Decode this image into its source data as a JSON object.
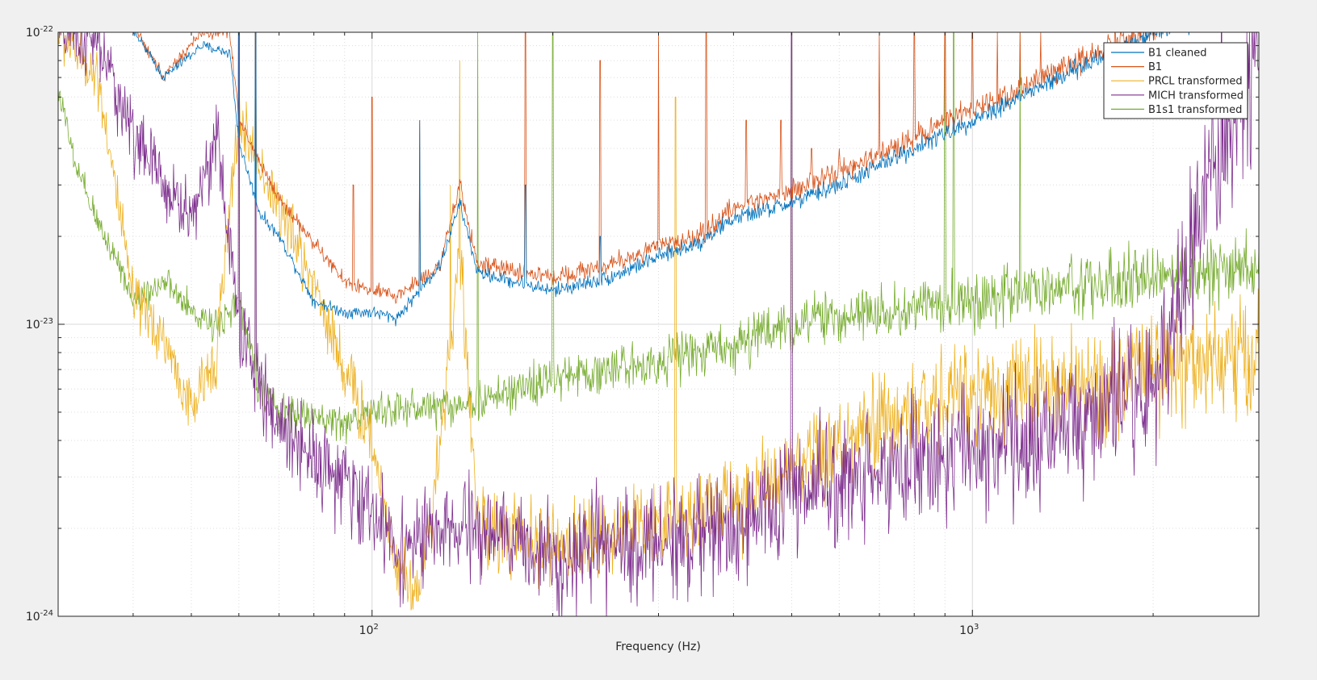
{
  "window": {
    "background": "#f0f0f0"
  },
  "chart_data": {
    "type": "line",
    "title": "",
    "xlabel": "Frequency (Hz)",
    "ylabel": "",
    "xscale": "log",
    "yscale": "log",
    "xlim": [
      30,
      3000
    ],
    "ylim": [
      1e-24,
      1e-22
    ],
    "grid": true,
    "minor_grid": true,
    "legend_position": "top-right",
    "x_ticks": [
      {
        "value": 100,
        "base": "10",
        "exp": "2"
      },
      {
        "value": 1000,
        "base": "10",
        "exp": "3"
      }
    ],
    "y_ticks": [
      {
        "value": 1e-24,
        "base": "10",
        "exp": "-24"
      },
      {
        "value": 1e-23,
        "base": "10",
        "exp": "-23"
      },
      {
        "value": 1e-22,
        "base": "10",
        "exp": "-22"
      }
    ],
    "series": [
      {
        "name": "B1 cleaned",
        "color": "#0072bd",
        "noise": 0.04,
        "anchors": [
          [
            30,
            1.35e-22
          ],
          [
            38,
            1.2e-22
          ],
          [
            45,
            7e-23
          ],
          [
            52,
            9e-23
          ],
          [
            58,
            8.5e-23
          ],
          [
            60,
            4.2e-23
          ],
          [
            65,
            2.4e-23
          ],
          [
            70,
            2e-23
          ],
          [
            80,
            1.2e-23
          ],
          [
            90,
            1.1e-23
          ],
          [
            100,
            1.1e-23
          ],
          [
            110,
            1.05e-23
          ],
          [
            130,
            1.6e-23
          ],
          [
            140,
            2.6e-23
          ],
          [
            150,
            1.5e-23
          ],
          [
            200,
            1.3e-23
          ],
          [
            250,
            1.45e-23
          ],
          [
            300,
            1.7e-23
          ],
          [
            350,
            1.9e-23
          ],
          [
            400,
            2.3e-23
          ],
          [
            500,
            2.6e-23
          ],
          [
            600,
            3e-23
          ],
          [
            700,
            3.5e-23
          ],
          [
            800,
            4e-23
          ],
          [
            1000,
            5e-23
          ],
          [
            1200,
            6e-23
          ],
          [
            1500,
            7.5e-23
          ],
          [
            2000,
            1e-22
          ],
          [
            2500,
            1.15e-22
          ]
        ],
        "peaks": [
          [
            60,
            6e-22
          ],
          [
            64,
            3e-22
          ],
          [
            120,
            5e-23
          ],
          [
            180,
            3e-23
          ],
          [
            240,
            2e-23
          ]
        ]
      },
      {
        "name": "B1",
        "color": "#d95319",
        "noise": 0.05,
        "anchors": [
          [
            30,
            1.35e-22
          ],
          [
            38,
            1.25e-22
          ],
          [
            45,
            7e-23
          ],
          [
            52,
            1e-22
          ],
          [
            58,
            1e-22
          ],
          [
            60,
            5e-23
          ],
          [
            65,
            3.6e-23
          ],
          [
            70,
            2.7e-23
          ],
          [
            80,
            1.9e-23
          ],
          [
            90,
            1.4e-23
          ],
          [
            100,
            1.3e-23
          ],
          [
            110,
            1.25e-23
          ],
          [
            130,
            1.6e-23
          ],
          [
            140,
            3e-23
          ],
          [
            150,
            1.6e-23
          ],
          [
            200,
            1.45e-23
          ],
          [
            250,
            1.6e-23
          ],
          [
            300,
            1.85e-23
          ],
          [
            350,
            2e-23
          ],
          [
            400,
            2.5e-23
          ],
          [
            500,
            2.9e-23
          ],
          [
            600,
            3.3e-23
          ],
          [
            700,
            3.8e-23
          ],
          [
            800,
            4.4e-23
          ],
          [
            1000,
            5.4e-23
          ],
          [
            1200,
            6.4e-23
          ],
          [
            1500,
            8e-23
          ],
          [
            2000,
            1.05e-22
          ],
          [
            2500,
            1.2e-22
          ]
        ],
        "peaks": [
          [
            60,
            6e-22
          ],
          [
            64,
            3e-22
          ],
          [
            93,
            3e-23
          ],
          [
            100,
            6e-23
          ],
          [
            120,
            5e-23
          ],
          [
            180,
            1e-22
          ],
          [
            240,
            8e-23
          ],
          [
            300,
            1e-22
          ],
          [
            360,
            1e-22
          ],
          [
            420,
            5e-23
          ],
          [
            480,
            5e-23
          ],
          [
            540,
            4e-23
          ],
          [
            600,
            4e-23
          ],
          [
            700,
            1e-22
          ],
          [
            800,
            1e-22
          ],
          [
            900,
            1e-22
          ],
          [
            1000,
            1e-22
          ],
          [
            1100,
            1e-22
          ],
          [
            1200,
            1e-22
          ],
          [
            1300,
            1e-22
          ]
        ]
      },
      {
        "name": "PRCL transformed",
        "color": "#edb120",
        "noise": 0.22,
        "anchors": [
          [
            30,
            1e-22
          ],
          [
            35,
            7e-23
          ],
          [
            40,
            1.2e-23
          ],
          [
            45,
            9e-24
          ],
          [
            50,
            5e-24
          ],
          [
            55,
            8e-24
          ],
          [
            60,
            5e-23
          ],
          [
            70,
            2.5e-23
          ],
          [
            80,
            1.4e-23
          ],
          [
            90,
            7e-24
          ],
          [
            100,
            4e-24
          ],
          [
            110,
            1.5e-24
          ],
          [
            120,
            1.2e-24
          ],
          [
            130,
            4e-24
          ],
          [
            140,
            1.8e-23
          ],
          [
            150,
            2e-24
          ],
          [
            200,
            1.7e-24
          ],
          [
            300,
            2.1e-24
          ],
          [
            400,
            2.5e-24
          ],
          [
            500,
            3e-24
          ],
          [
            700,
            4.5e-24
          ],
          [
            1000,
            6e-24
          ],
          [
            1500,
            6e-24
          ],
          [
            2000,
            7e-24
          ],
          [
            3000,
            8e-24
          ]
        ],
        "peaks": [
          [
            60,
            6e-22
          ],
          [
            64,
            3e-22
          ],
          [
            135,
            3e-23
          ],
          [
            140,
            8e-23
          ],
          [
            320,
            6e-23
          ],
          [
            1270,
            1e-23
          ]
        ]
      },
      {
        "name": "MICH transformed",
        "color": "#7e2f8e",
        "noise": 0.28,
        "anchors": [
          [
            30,
            1e-22
          ],
          [
            35,
            9e-23
          ],
          [
            40,
            4.5e-23
          ],
          [
            45,
            3e-23
          ],
          [
            50,
            2.3e-23
          ],
          [
            55,
            4.5e-23
          ],
          [
            60,
            1e-23
          ],
          [
            65,
            6e-24
          ],
          [
            70,
            4.5e-24
          ],
          [
            80,
            3.6e-24
          ],
          [
            90,
            2.8e-24
          ],
          [
            100,
            2.3e-24
          ],
          [
            110,
            1.7e-24
          ],
          [
            130,
            1.9e-24
          ],
          [
            150,
            2e-24
          ],
          [
            200,
            1.6e-24
          ],
          [
            300,
            1.8e-24
          ],
          [
            400,
            2e-24
          ],
          [
            500,
            2.6e-24
          ],
          [
            700,
            3.2e-24
          ],
          [
            1000,
            3.7e-24
          ],
          [
            1500,
            4.5e-24
          ],
          [
            2000,
            6e-24
          ],
          [
            2500,
            3e-23
          ],
          [
            3000,
            8e-23
          ]
        ],
        "peaks": [
          [
            60,
            5e-22
          ],
          [
            64,
            3e-22
          ],
          [
            500,
            1e-22
          ],
          [
            2600,
            2e-22
          ]
        ]
      },
      {
        "name": "B1s1 transformed",
        "color": "#77ac30",
        "noise": 0.12,
        "anchors": [
          [
            30,
            6.5e-23
          ],
          [
            32,
            3.5e-23
          ],
          [
            35,
            2.2e-23
          ],
          [
            38,
            1.6e-23
          ],
          [
            40,
            1.2e-23
          ],
          [
            45,
            1.4e-23
          ],
          [
            50,
            1.1e-23
          ],
          [
            55,
            1e-23
          ],
          [
            60,
            1.2e-23
          ],
          [
            65,
            6e-24
          ],
          [
            70,
            5e-24
          ],
          [
            80,
            4.8e-24
          ],
          [
            90,
            4.6e-24
          ],
          [
            100,
            5e-24
          ],
          [
            120,
            5.2e-24
          ],
          [
            150,
            5.4e-24
          ],
          [
            200,
            6.5e-24
          ],
          [
            250,
            7e-24
          ],
          [
            300,
            7.5e-24
          ],
          [
            400,
            8.5e-24
          ],
          [
            500,
            1e-23
          ],
          [
            700,
            1.1e-23
          ],
          [
            1000,
            1.2e-23
          ],
          [
            1500,
            1.35e-23
          ],
          [
            2000,
            1.45e-23
          ],
          [
            3000,
            1.6e-23
          ]
        ],
        "peaks": [
          [
            60,
            5e-22
          ],
          [
            64,
            3e-22
          ],
          [
            150,
            1e-22
          ],
          [
            200,
            1e-22
          ],
          [
            500,
            1e-22
          ],
          [
            900,
            1e-22
          ],
          [
            930,
            1e-22
          ],
          [
            1200,
            1e-22
          ]
        ]
      }
    ]
  }
}
